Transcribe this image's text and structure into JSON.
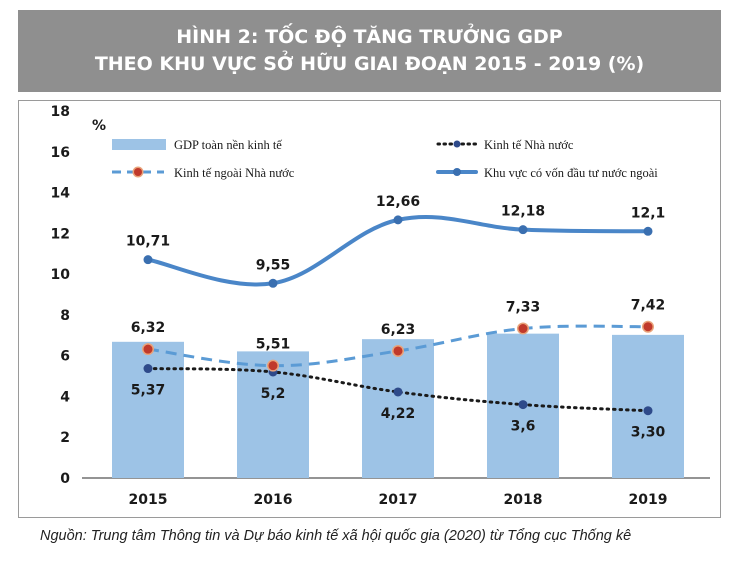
{
  "header": {
    "title_line1": "HÌNH 2: TỐC ĐỘ TĂNG TRƯỞNG GDP",
    "title_line2": "THEO KHU VỰC SỞ HỮU GIAI ĐOẠN 2015 - 2019 (%)"
  },
  "source": "Nguồn: Trung tâm Thông tin và Dự báo kinh tế xã hội quốc gia (2020) từ Tổng cục Thống kê",
  "colors": {
    "bar": "#9dc3e6",
    "private": "#5b9bd5",
    "private_marker": "#c0392b",
    "state": "#1a1a1a",
    "state_marker": "#2e4a8a",
    "fdi": "#4a86c8",
    "fdi_marker": "#3a6fb0"
  },
  "chart_data": {
    "type": "bar",
    "categories": [
      "2015",
      "2016",
      "2017",
      "2018",
      "2019"
    ],
    "ylabel": "%",
    "ylim": [
      0,
      18
    ],
    "yticks": [
      "0",
      "2",
      "4",
      "6",
      "8",
      "10",
      "12",
      "14",
      "16",
      "18"
    ],
    "grid": false,
    "legend_position": "top",
    "series": [
      {
        "name": "GDP toàn nền kinh tế",
        "kind": "bar",
        "values": [
          6.68,
          6.21,
          6.81,
          7.08,
          7.02
        ]
      },
      {
        "name": "Kinh tế Nhà nước",
        "kind": "line-dotted",
        "values": [
          5.37,
          5.2,
          4.22,
          3.6,
          3.3
        ],
        "labels": [
          "5,37",
          "5,2",
          "4,22",
          "3,6",
          "3,30"
        ]
      },
      {
        "name": "Kinh tế ngoài Nhà nước",
        "kind": "line-dashed",
        "values": [
          6.32,
          5.51,
          6.23,
          7.33,
          7.42
        ],
        "labels": [
          "6,32",
          "5,51",
          "6,23",
          "7,33",
          "7,42"
        ]
      },
      {
        "name": "Khu vực có vốn đầu tư nước ngoài",
        "kind": "line-solid",
        "values": [
          10.71,
          9.55,
          12.66,
          12.18,
          12.1
        ],
        "labels": [
          "10,71",
          "9,55",
          "12,66",
          "12,18",
          "12,1"
        ]
      }
    ]
  }
}
